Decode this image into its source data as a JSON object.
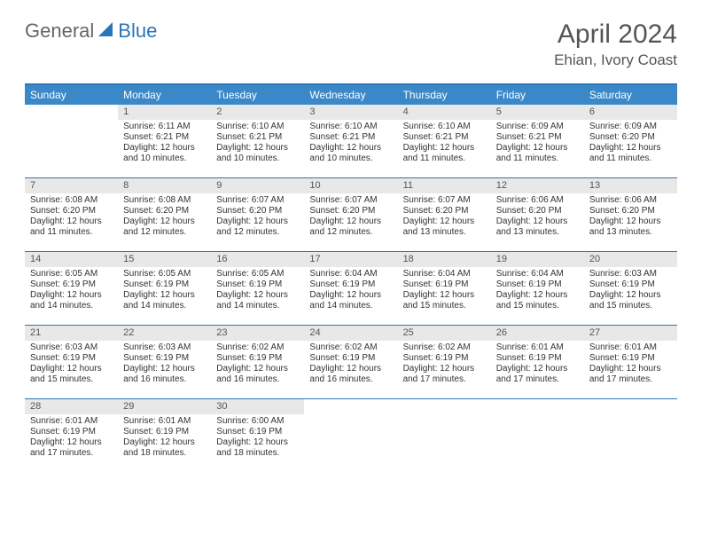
{
  "logo": {
    "general": "General",
    "blue": "Blue"
  },
  "title": "April 2024",
  "location": "Ehian, Ivory Coast",
  "colors": {
    "header_blue": "#3b88c8",
    "border_blue": "#2976bb",
    "daynum_bg": "#e8e8e8",
    "text": "#333333",
    "title_text": "#555555"
  },
  "dow": [
    "Sunday",
    "Monday",
    "Tuesday",
    "Wednesday",
    "Thursday",
    "Friday",
    "Saturday"
  ],
  "cells": [
    {
      "n": "",
      "s": "",
      "t": "",
      "d": ""
    },
    {
      "n": "1",
      "s": "Sunrise: 6:11 AM",
      "t": "Sunset: 6:21 PM",
      "d": "Daylight: 12 hours and 10 minutes."
    },
    {
      "n": "2",
      "s": "Sunrise: 6:10 AM",
      "t": "Sunset: 6:21 PM",
      "d": "Daylight: 12 hours and 10 minutes."
    },
    {
      "n": "3",
      "s": "Sunrise: 6:10 AM",
      "t": "Sunset: 6:21 PM",
      "d": "Daylight: 12 hours and 10 minutes."
    },
    {
      "n": "4",
      "s": "Sunrise: 6:10 AM",
      "t": "Sunset: 6:21 PM",
      "d": "Daylight: 12 hours and 11 minutes."
    },
    {
      "n": "5",
      "s": "Sunrise: 6:09 AM",
      "t": "Sunset: 6:21 PM",
      "d": "Daylight: 12 hours and 11 minutes."
    },
    {
      "n": "6",
      "s": "Sunrise: 6:09 AM",
      "t": "Sunset: 6:20 PM",
      "d": "Daylight: 12 hours and 11 minutes."
    },
    {
      "n": "7",
      "s": "Sunrise: 6:08 AM",
      "t": "Sunset: 6:20 PM",
      "d": "Daylight: 12 hours and 11 minutes."
    },
    {
      "n": "8",
      "s": "Sunrise: 6:08 AM",
      "t": "Sunset: 6:20 PM",
      "d": "Daylight: 12 hours and 12 minutes."
    },
    {
      "n": "9",
      "s": "Sunrise: 6:07 AM",
      "t": "Sunset: 6:20 PM",
      "d": "Daylight: 12 hours and 12 minutes."
    },
    {
      "n": "10",
      "s": "Sunrise: 6:07 AM",
      "t": "Sunset: 6:20 PM",
      "d": "Daylight: 12 hours and 12 minutes."
    },
    {
      "n": "11",
      "s": "Sunrise: 6:07 AM",
      "t": "Sunset: 6:20 PM",
      "d": "Daylight: 12 hours and 13 minutes."
    },
    {
      "n": "12",
      "s": "Sunrise: 6:06 AM",
      "t": "Sunset: 6:20 PM",
      "d": "Daylight: 12 hours and 13 minutes."
    },
    {
      "n": "13",
      "s": "Sunrise: 6:06 AM",
      "t": "Sunset: 6:20 PM",
      "d": "Daylight: 12 hours and 13 minutes."
    },
    {
      "n": "14",
      "s": "Sunrise: 6:05 AM",
      "t": "Sunset: 6:19 PM",
      "d": "Daylight: 12 hours and 14 minutes."
    },
    {
      "n": "15",
      "s": "Sunrise: 6:05 AM",
      "t": "Sunset: 6:19 PM",
      "d": "Daylight: 12 hours and 14 minutes."
    },
    {
      "n": "16",
      "s": "Sunrise: 6:05 AM",
      "t": "Sunset: 6:19 PM",
      "d": "Daylight: 12 hours and 14 minutes."
    },
    {
      "n": "17",
      "s": "Sunrise: 6:04 AM",
      "t": "Sunset: 6:19 PM",
      "d": "Daylight: 12 hours and 14 minutes."
    },
    {
      "n": "18",
      "s": "Sunrise: 6:04 AM",
      "t": "Sunset: 6:19 PM",
      "d": "Daylight: 12 hours and 15 minutes."
    },
    {
      "n": "19",
      "s": "Sunrise: 6:04 AM",
      "t": "Sunset: 6:19 PM",
      "d": "Daylight: 12 hours and 15 minutes."
    },
    {
      "n": "20",
      "s": "Sunrise: 6:03 AM",
      "t": "Sunset: 6:19 PM",
      "d": "Daylight: 12 hours and 15 minutes."
    },
    {
      "n": "21",
      "s": "Sunrise: 6:03 AM",
      "t": "Sunset: 6:19 PM",
      "d": "Daylight: 12 hours and 15 minutes."
    },
    {
      "n": "22",
      "s": "Sunrise: 6:03 AM",
      "t": "Sunset: 6:19 PM",
      "d": "Daylight: 12 hours and 16 minutes."
    },
    {
      "n": "23",
      "s": "Sunrise: 6:02 AM",
      "t": "Sunset: 6:19 PM",
      "d": "Daylight: 12 hours and 16 minutes."
    },
    {
      "n": "24",
      "s": "Sunrise: 6:02 AM",
      "t": "Sunset: 6:19 PM",
      "d": "Daylight: 12 hours and 16 minutes."
    },
    {
      "n": "25",
      "s": "Sunrise: 6:02 AM",
      "t": "Sunset: 6:19 PM",
      "d": "Daylight: 12 hours and 17 minutes."
    },
    {
      "n": "26",
      "s": "Sunrise: 6:01 AM",
      "t": "Sunset: 6:19 PM",
      "d": "Daylight: 12 hours and 17 minutes."
    },
    {
      "n": "27",
      "s": "Sunrise: 6:01 AM",
      "t": "Sunset: 6:19 PM",
      "d": "Daylight: 12 hours and 17 minutes."
    },
    {
      "n": "28",
      "s": "Sunrise: 6:01 AM",
      "t": "Sunset: 6:19 PM",
      "d": "Daylight: 12 hours and 17 minutes."
    },
    {
      "n": "29",
      "s": "Sunrise: 6:01 AM",
      "t": "Sunset: 6:19 PM",
      "d": "Daylight: 12 hours and 18 minutes."
    },
    {
      "n": "30",
      "s": "Sunrise: 6:00 AM",
      "t": "Sunset: 6:19 PM",
      "d": "Daylight: 12 hours and 18 minutes."
    },
    {
      "n": "",
      "s": "",
      "t": "",
      "d": ""
    },
    {
      "n": "",
      "s": "",
      "t": "",
      "d": ""
    },
    {
      "n": "",
      "s": "",
      "t": "",
      "d": ""
    },
    {
      "n": "",
      "s": "",
      "t": "",
      "d": ""
    }
  ]
}
